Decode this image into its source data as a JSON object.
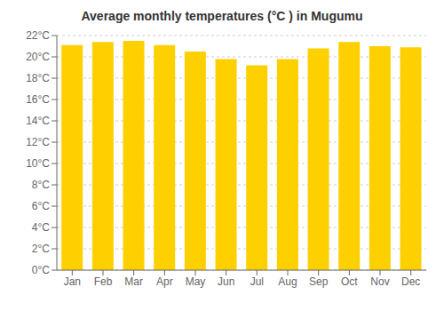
{
  "chart_data": {
    "type": "bar",
    "title": "Average monthly temperatures (°C ) in Mugumu",
    "categories": [
      "Jan",
      "Feb",
      "Mar",
      "Apr",
      "May",
      "Jun",
      "Jul",
      "Aug",
      "Sep",
      "Oct",
      "Nov",
      "Dec"
    ],
    "values": [
      21.1,
      21.4,
      21.5,
      21.1,
      20.5,
      19.8,
      19.2,
      19.8,
      20.8,
      21.4,
      21.0,
      20.9
    ],
    "color": "#FFD000",
    "ylim": [
      0,
      22
    ],
    "yticks": [
      {
        "value": 0,
        "label": "0°C"
      },
      {
        "value": 2,
        "label": "2°C"
      },
      {
        "value": 4,
        "label": "4°C"
      },
      {
        "value": 6,
        "label": "6°C"
      },
      {
        "value": 8,
        "label": "8°C"
      },
      {
        "value": 10,
        "label": "10°C"
      },
      {
        "value": 12,
        "label": "12°C"
      },
      {
        "value": 14,
        "label": "14°C"
      },
      {
        "value": 16,
        "label": "16°C"
      },
      {
        "value": 18,
        "label": "18°C"
      },
      {
        "value": 20,
        "label": "20°C"
      },
      {
        "value": 22,
        "label": "22°C"
      }
    ],
    "grid": true
  }
}
